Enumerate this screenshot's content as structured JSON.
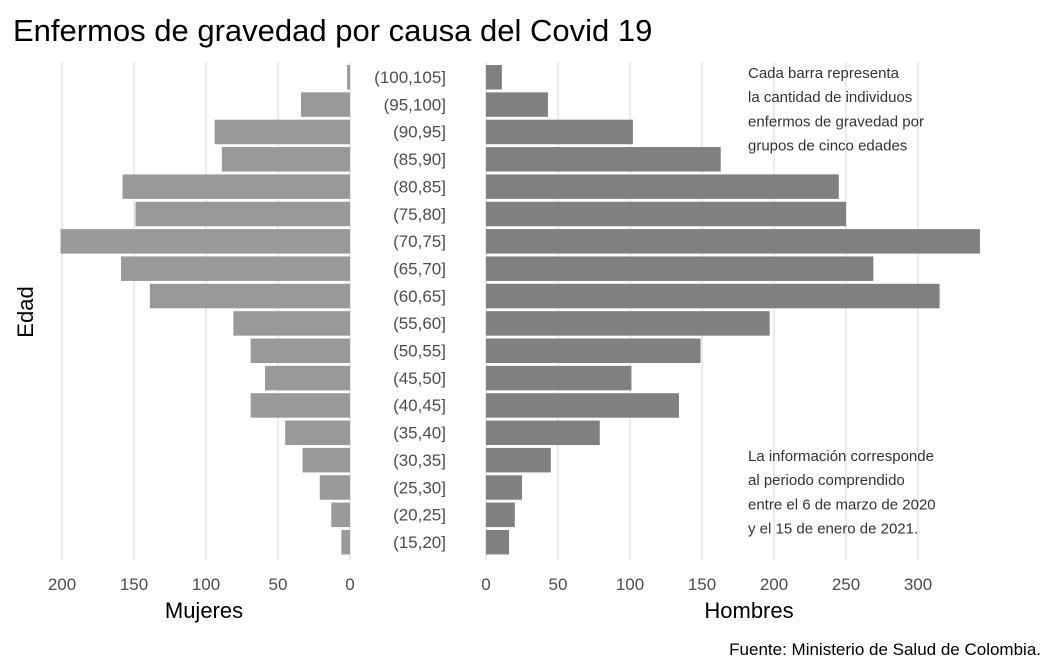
{
  "chart_data": {
    "type": "bar",
    "orientation": "horizontal",
    "layout": "population-pyramid",
    "title": "Enfermos de gravedad por causa del Covid 19",
    "ylabel": "Edad",
    "caption": "Fuente: Ministerio de Salud de Colombia.",
    "categories": [
      "(15,20]",
      "(20,25]",
      "(25,30]",
      "(30,35]",
      "(35,40]",
      "(40,45]",
      "(45,50]",
      "(50,55]",
      "(55,60]",
      "(60,65]",
      "(65,70]",
      "(70,75]",
      "(75,80]",
      "(80,85]",
      "(85,90]",
      "(90,95]",
      "(95,100]",
      "(100,105]"
    ],
    "series": [
      {
        "name": "Mujeres",
        "xlabel": "Mujeres",
        "color": "#999999",
        "xlim": [
          200,
          0
        ],
        "ticks": [
          200,
          150,
          100,
          50,
          0
        ],
        "values": [
          6,
          13,
          21,
          33,
          45,
          69,
          59,
          69,
          81,
          139,
          159,
          201,
          149,
          158,
          89,
          94,
          34,
          2
        ]
      },
      {
        "name": "Hombres",
        "xlabel": "Hombres",
        "color": "#808080",
        "xlim": [
          0,
          343
        ],
        "ticks": [
          0,
          50,
          100,
          150,
          200,
          250,
          300
        ],
        "values": [
          16,
          20,
          25,
          45,
          79,
          134,
          101,
          149,
          197,
          315,
          269,
          343,
          250,
          245,
          163,
          102,
          43,
          11
        ]
      }
    ],
    "annotations": [
      [
        "Cada barra representa",
        "la cantidad de individuos",
        "enfermos de gravedad por",
        "grupos de cinco edades"
      ],
      [
        "La información corresponde",
        "al periodo comprendido",
        "entre el 6 de marzo de 2020",
        "y el 15 de enero de 2021."
      ]
    ],
    "grid": true,
    "legend": "none"
  }
}
